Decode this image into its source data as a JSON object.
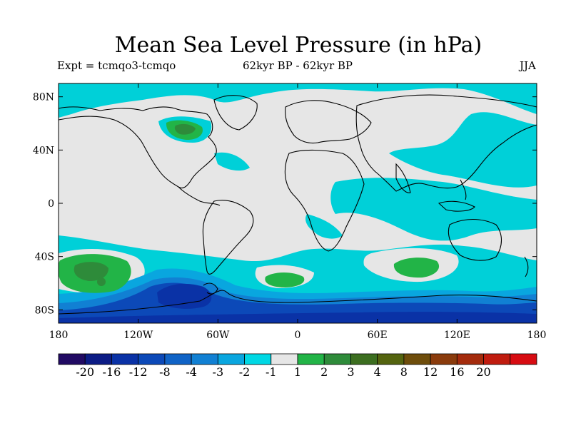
{
  "title": "Mean Sea Level Pressure (in hPa)",
  "experiment": "Expt = tcmqo3-tcmqo",
  "period": "62kyr BP - 62kyr BP",
  "season": "JJA",
  "map": {
    "projection": "cylindrical-equidistant",
    "lon_range": [
      -180,
      180
    ],
    "lat_range": [
      -90,
      90
    ],
    "lat_tick_labels": [
      "80N",
      "40N",
      "0",
      "40S",
      "80S"
    ],
    "lat_tick_values": [
      80,
      40,
      0,
      -40,
      -80
    ],
    "lon_tick_labels": [
      "180",
      "120W",
      "60W",
      "0",
      "60E",
      "120E",
      "180"
    ],
    "lon_tick_values": [
      -180,
      -120,
      -60,
      0,
      60,
      120,
      180
    ],
    "background_class": "-1 to 1",
    "background_color": "#e6e6e6",
    "regions": [
      {
        "name": "southern-ocean-belt",
        "class": "-2 to -1",
        "color": "#00d0d8"
      },
      {
        "name": "antarctic-pressure-low",
        "class": "-8 to -4",
        "color": "#0a4dbd"
      },
      {
        "name": "pacific-low-60s",
        "class": "-4 to -3",
        "color": "#1b67c9"
      },
      {
        "name": "indian-ocean-decrease",
        "class": "-2 to -1",
        "color": "#00d0d8"
      },
      {
        "name": "canada-increase",
        "class": "1 to 2",
        "color": "#22b447"
      },
      {
        "name": "south-pacific-increase",
        "class": "2 to 3",
        "color": "#2e8b3a"
      },
      {
        "name": "south-atlantic-increase",
        "class": "1 to 2",
        "color": "#22b447"
      },
      {
        "name": "south-indian-increase",
        "class": "1 to 2",
        "color": "#22b447"
      }
    ]
  },
  "colorbar": {
    "colors": [
      "#210a63",
      "#0c1c85",
      "#0a32a6",
      "#0c49b8",
      "#1063c6",
      "#1180d3",
      "#09a6df",
      "#00d8e4",
      "#e6e6e6",
      "#22b447",
      "#2e8b3a",
      "#3c6e20",
      "#54640f",
      "#6e4d0b",
      "#8a3b0c",
      "#a42b0c",
      "#c01c0f",
      "#d70c12"
    ],
    "labels": [
      "-20",
      "-16",
      "-12",
      "-8",
      "-4",
      "-3",
      "-2",
      "-1",
      "1",
      "2",
      "3",
      "4",
      "8",
      "12",
      "16",
      "20"
    ]
  }
}
